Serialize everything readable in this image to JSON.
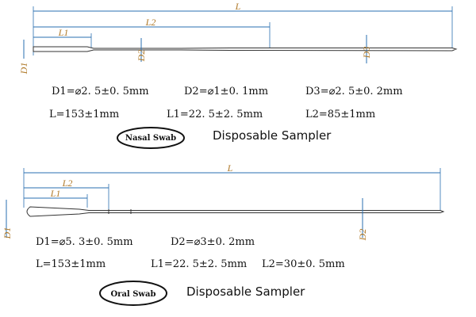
{
  "nasal": {
    "dimensions": {
      "L": "L",
      "L2": "L2",
      "L1": "L1",
      "D1": "D1",
      "D2": "D2",
      "D3": "D3"
    },
    "specs": [
      [
        "D1=⌀2. 5±0. 5mm",
        "D2=⌀1±0. 1mm",
        "D3=⌀2. 5±0. 2mm"
      ],
      [
        "L=153±1mm",
        "L1=22. 5±2. 5mm",
        "L2=85±1mm"
      ]
    ],
    "badge": "Nasal Swab",
    "caption": "Disposable Sampler"
  },
  "oral": {
    "dimensions": {
      "L": "L",
      "L2": "L2",
      "L1": "L1",
      "D1": "D1",
      "D2": "D2"
    },
    "specs": [
      [
        "D1=⌀5. 3±0. 5mm",
        "D2=⌀3±0. 2mm"
      ],
      [
        "L=153±1mm",
        "L1=22. 5±2. 5mm",
        "L2=30±0. 5mm"
      ]
    ],
    "badge": "Oral Swab",
    "caption": "Disposable Sampler"
  }
}
